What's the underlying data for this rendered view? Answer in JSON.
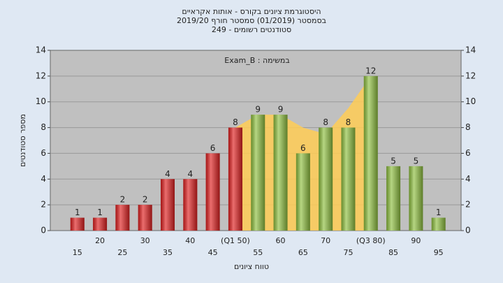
{
  "chart_data": {
    "type": "bar",
    "title": [
      "היסטוגרמת ציונים בקורס - אותות אקראיים",
      "בסמסטר (01/2019) סמסטר חורף 2019/20",
      "סטודנטים רשומים - 249"
    ],
    "annotation": "במשימה : Exam_B",
    "x_label": "טווח ציונים",
    "y_label": "מספר סטודנטים",
    "x": [
      15,
      20,
      25,
      30,
      35,
      40,
      45,
      50,
      55,
      60,
      65,
      70,
      75,
      80,
      85,
      90,
      95
    ],
    "x_tick_labels": [
      "15",
      "20",
      "25",
      "30",
      "35",
      "40",
      "45",
      "(Q1 50)",
      "55",
      "60",
      "65",
      "70",
      "75",
      "(Q3 80)",
      "85",
      "90",
      "95"
    ],
    "values": [
      1,
      1,
      2,
      2,
      4,
      4,
      6,
      8,
      9,
      9,
      6,
      8,
      8,
      12,
      5,
      5,
      1
    ],
    "colors": [
      "#e02020",
      "#e02020",
      "#e02020",
      "#e02020",
      "#e02020",
      "#e02020",
      "#e02020",
      "#e02020",
      "#8fc040",
      "#8fc040",
      "#8fc040",
      "#8fc040",
      "#8fc040",
      "#8fc040",
      "#8fc040",
      "#8fc040",
      "#8fc040"
    ],
    "band": {
      "color": "#ffcc55",
      "x": [
        50,
        55,
        60,
        65,
        70,
        75,
        80
      ],
      "values": [
        8,
        9,
        9,
        8,
        7.5,
        9.5,
        12
      ]
    },
    "xlim": [
      9,
      100
    ],
    "ylim": [
      0,
      14
    ],
    "yticks": [
      0,
      2,
      4,
      6,
      8,
      10,
      12,
      14
    ],
    "y2lim": [
      0,
      14
    ],
    "y2ticks": [
      0,
      2,
      4,
      6,
      8,
      10,
      12,
      14
    ],
    "grid": true
  }
}
